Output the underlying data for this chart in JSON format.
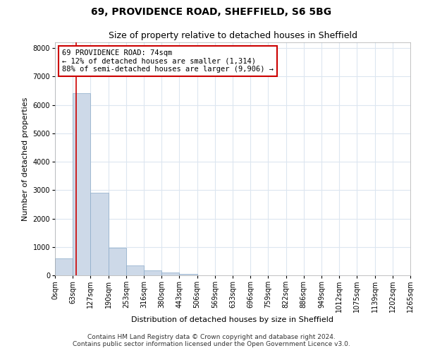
{
  "title1": "69, PROVIDENCE ROAD, SHEFFIELD, S6 5BG",
  "title2": "Size of property relative to detached houses in Sheffield",
  "xlabel": "Distribution of detached houses by size in Sheffield",
  "ylabel": "Number of detached properties",
  "footnote1": "Contains HM Land Registry data © Crown copyright and database right 2024.",
  "footnote2": "Contains public sector information licensed under the Open Government Licence v3.0.",
  "bin_labels": [
    "0sqm",
    "63sqm",
    "127sqm",
    "190sqm",
    "253sqm",
    "316sqm",
    "380sqm",
    "443sqm",
    "506sqm",
    "569sqm",
    "633sqm",
    "696sqm",
    "759sqm",
    "822sqm",
    "886sqm",
    "949sqm",
    "1012sqm",
    "1075sqm",
    "1139sqm",
    "1202sqm",
    "1265sqm"
  ],
  "bar_values": [
    600,
    6400,
    2900,
    970,
    360,
    170,
    90,
    60,
    10,
    5,
    3,
    2,
    1,
    1,
    0,
    0,
    0,
    0,
    0,
    0
  ],
  "bar_color": "#cdd9e8",
  "bar_edge_color": "#8aaac8",
  "grid_color": "#dce6f0",
  "annotation_box_color": "#cc0000",
  "property_line_color": "#cc0000",
  "annotation_text": "69 PROVIDENCE ROAD: 74sqm\n← 12% of detached houses are smaller (1,314)\n88% of semi-detached houses are larger (9,906) →",
  "property_sqm": 74,
  "ylim": [
    0,
    8200
  ],
  "yticks": [
    0,
    1000,
    2000,
    3000,
    4000,
    5000,
    6000,
    7000,
    8000
  ],
  "background_color": "#ffffff",
  "title1_fontsize": 10,
  "title2_fontsize": 9,
  "annotation_fontsize": 7.5,
  "axis_label_fontsize": 8,
  "tick_fontsize": 7,
  "footnote_fontsize": 6.5
}
